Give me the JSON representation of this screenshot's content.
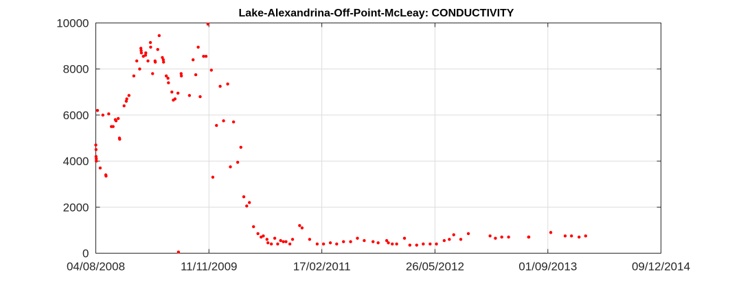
{
  "chart_data": {
    "type": "scatter",
    "title": "Lake-Alexandrina-Off-Point-McLeay: CONDUCTIVITY",
    "xlabel": "",
    "ylabel": "",
    "x_axis": "date",
    "xlim": [
      "2008-08-04",
      "2014-12-09"
    ],
    "ylim": [
      0,
      10000
    ],
    "grid": true,
    "marker_color": "#ff0000",
    "x_ticks": [
      "04/08/2008",
      "11/11/2009",
      "17/02/2011",
      "26/05/2012",
      "01/09/2013",
      "09/12/2014"
    ],
    "y_ticks": [
      "0",
      "2000",
      "4000",
      "6000",
      "8000",
      "10000"
    ],
    "points": [
      [
        "2008-08-04",
        4700
      ],
      [
        "2008-08-05",
        4500
      ],
      [
        "2008-08-05",
        4200
      ],
      [
        "2008-08-06",
        4100
      ],
      [
        "2008-08-06",
        4000
      ],
      [
        "2008-08-11",
        6200
      ],
      [
        "2008-08-22",
        3700
      ],
      [
        "2008-09-02",
        6000
      ],
      [
        "2008-09-14",
        3400
      ],
      [
        "2008-09-15",
        3350
      ],
      [
        "2008-09-26",
        6050
      ],
      [
        "2008-10-07",
        5500
      ],
      [
        "2008-10-14",
        5500
      ],
      [
        "2008-10-23",
        5800
      ],
      [
        "2008-10-26",
        5750
      ],
      [
        "2008-11-04",
        5850
      ],
      [
        "2008-11-09",
        5000
      ],
      [
        "2008-11-10",
        4950
      ],
      [
        "2008-11-28",
        6400
      ],
      [
        "2008-12-07",
        6600
      ],
      [
        "2008-12-09",
        6700
      ],
      [
        "2008-12-18",
        6850
      ],
      [
        "2009-01-07",
        7700
      ],
      [
        "2009-01-19",
        8350
      ],
      [
        "2009-01-31",
        8000
      ],
      [
        "2009-02-05",
        8900
      ],
      [
        "2009-02-06",
        8800
      ],
      [
        "2009-02-07",
        8700
      ],
      [
        "2009-02-15",
        8550
      ],
      [
        "2009-02-24",
        8600
      ],
      [
        "2009-02-25",
        8700
      ],
      [
        "2009-03-06",
        8350
      ],
      [
        "2009-03-16",
        9150
      ],
      [
        "2009-03-17",
        8950
      ],
      [
        "2009-03-25",
        7800
      ],
      [
        "2009-04-04",
        8350
      ],
      [
        "2009-04-05",
        8300
      ],
      [
        "2009-04-15",
        8850
      ],
      [
        "2009-04-21",
        9450
      ],
      [
        "2009-05-04",
        8500
      ],
      [
        "2009-05-08",
        8400
      ],
      [
        "2009-05-09",
        8300
      ],
      [
        "2009-05-20",
        7700
      ],
      [
        "2009-05-27",
        7600
      ],
      [
        "2009-05-29",
        7400
      ],
      [
        "2009-06-12",
        7000
      ],
      [
        "2009-06-18",
        6650
      ],
      [
        "2009-06-25",
        6700
      ],
      [
        "2009-07-07",
        6950
      ],
      [
        "2009-07-09",
        50
      ],
      [
        "2009-07-20",
        7800
      ],
      [
        "2009-07-21",
        7700
      ],
      [
        "2009-08-23",
        6850
      ],
      [
        "2009-09-07",
        8400
      ],
      [
        "2009-09-18",
        7750
      ],
      [
        "2009-09-28",
        8950
      ],
      [
        "2009-10-06",
        6800
      ],
      [
        "2009-10-20",
        8550
      ],
      [
        "2009-10-30",
        8550
      ],
      [
        "2009-11-07",
        9950
      ],
      [
        "2009-11-21",
        7950
      ],
      [
        "2009-11-27",
        3300
      ],
      [
        "2009-12-12",
        5550
      ],
      [
        "2009-12-27",
        7250
      ],
      [
        "2010-01-10",
        5750
      ],
      [
        "2010-01-27",
        7350
      ],
      [
        "2010-02-07",
        3750
      ],
      [
        "2010-02-20",
        5700
      ],
      [
        "2010-03-09",
        3950
      ],
      [
        "2010-03-22",
        4600
      ],
      [
        "2010-04-03",
        2450
      ],
      [
        "2010-04-15",
        2050
      ],
      [
        "2010-04-26",
        2200
      ],
      [
        "2010-05-13",
        1150
      ],
      [
        "2010-05-31",
        850
      ],
      [
        "2010-06-13",
        700
      ],
      [
        "2010-06-22",
        750
      ],
      [
        "2010-07-07",
        600
      ],
      [
        "2010-07-11",
        450
      ],
      [
        "2010-07-25",
        400
      ],
      [
        "2010-08-08",
        650
      ],
      [
        "2010-08-20",
        400
      ],
      [
        "2010-09-01",
        550
      ],
      [
        "2010-09-12",
        500
      ],
      [
        "2010-09-23",
        500
      ],
      [
        "2010-10-09",
        400
      ],
      [
        "2010-10-20",
        600
      ],
      [
        "2010-11-18",
        1200
      ],
      [
        "2010-11-28",
        1100
      ],
      [
        "2010-12-29",
        600
      ],
      [
        "2011-01-29",
        400
      ],
      [
        "2011-02-24",
        400
      ],
      [
        "2011-03-24",
        450
      ],
      [
        "2011-04-19",
        400
      ],
      [
        "2011-05-17",
        500
      ],
      [
        "2011-06-15",
        500
      ],
      [
        "2011-07-13",
        650
      ],
      [
        "2011-08-10",
        550
      ],
      [
        "2011-09-15",
        500
      ],
      [
        "2011-10-06",
        450
      ],
      [
        "2011-11-10",
        550
      ],
      [
        "2011-11-17",
        450
      ],
      [
        "2011-12-03",
        400
      ],
      [
        "2011-12-21",
        400
      ],
      [
        "2012-01-22",
        650
      ],
      [
        "2012-02-13",
        350
      ],
      [
        "2012-03-12",
        350
      ],
      [
        "2012-04-08",
        400
      ],
      [
        "2012-05-06",
        400
      ],
      [
        "2012-06-01",
        400
      ],
      [
        "2012-07-03",
        550
      ],
      [
        "2012-07-24",
        600
      ],
      [
        "2012-08-11",
        800
      ],
      [
        "2012-09-09",
        600
      ],
      [
        "2012-10-10",
        850
      ],
      [
        "2013-01-07",
        750
      ],
      [
        "2013-01-29",
        650
      ],
      [
        "2013-02-24",
        700
      ],
      [
        "2013-03-24",
        700
      ],
      [
        "2013-06-14",
        700
      ],
      [
        "2013-06-15",
        700
      ],
      [
        "2013-09-13",
        900
      ],
      [
        "2013-11-11",
        750
      ],
      [
        "2013-12-07",
        750
      ],
      [
        "2014-01-07",
        700
      ],
      [
        "2014-02-03",
        750
      ]
    ]
  }
}
